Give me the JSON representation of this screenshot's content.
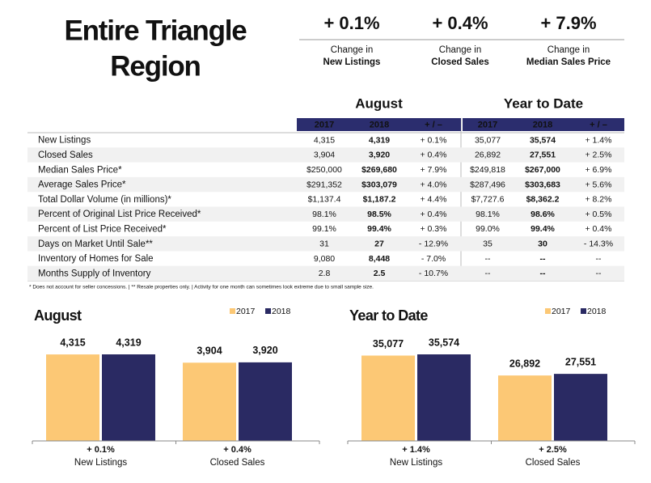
{
  "header": {
    "title_lines": [
      "Entire Triangle",
      "Region"
    ]
  },
  "highlights": [
    {
      "value": "+ 0.1%",
      "caption": [
        "Change in",
        "New Listings"
      ]
    },
    {
      "value": "+ 0.4%",
      "caption": [
        "Change in",
        "Closed Sales"
      ]
    },
    {
      "value": "+ 7.9%",
      "caption": [
        "Change in",
        "Median Sales Price"
      ]
    }
  ],
  "table": {
    "groups": [
      "August",
      "Year to Date"
    ],
    "columns": [
      "2017",
      "2018",
      "+ / –"
    ],
    "rows": [
      [
        "New Listings",
        "4,315",
        "4,319",
        "+ 0.1%",
        "35,077",
        "35,574",
        "+ 1.4%"
      ],
      [
        "Closed Sales",
        "3,904",
        "3,920",
        "+ 0.4%",
        "26,892",
        "27,551",
        "+ 2.5%"
      ],
      [
        "Median Sales Price*",
        "$250,000",
        "$269,680",
        "+ 7.9%",
        "$249,818",
        "$267,000",
        "+ 6.9%"
      ],
      [
        "Average Sales Price*",
        "$291,352",
        "$303,079",
        "+ 4.0%",
        "$287,496",
        "$303,683",
        "+ 5.6%"
      ],
      [
        "Total Dollar Volume (in millions)*",
        "$1,137.4",
        "$1,187.2",
        "+ 4.4%",
        "$7,727.6",
        "$8,362.2",
        "+ 8.2%"
      ],
      [
        "Percent of Original List Price Received*",
        "98.1%",
        "98.5%",
        "+ 0.4%",
        "98.1%",
        "98.6%",
        "+ 0.5%"
      ],
      [
        "Percent of List Price Received*",
        "99.1%",
        "99.4%",
        "+ 0.3%",
        "99.0%",
        "99.4%",
        "+ 0.4%"
      ],
      [
        "Days on Market Until Sale**",
        "31",
        "27",
        "- 12.9%",
        "35",
        "30",
        "- 14.3%"
      ],
      [
        "Inventory of Homes for Sale",
        "9,080",
        "8,448",
        "- 7.0%",
        "--",
        "--",
        "--"
      ],
      [
        "Months Supply of Inventory",
        "2.8",
        "2.5",
        "- 10.7%",
        "--",
        "--",
        "--"
      ]
    ]
  },
  "footnote": "* Does not account for seller concessions.  |  ** Resale properties only.  |  Activity for one month can sometimes look extreme due to small sample size.",
  "chart_data": [
    {
      "type": "bar",
      "title": "August",
      "categories": [
        "New Listings",
        "Closed Sales"
      ],
      "changes": [
        "+ 0.1%",
        "+ 0.4%"
      ],
      "series": [
        {
          "name": "2017",
          "color": "#fcc875",
          "values": [
            4315,
            3904
          ],
          "value_labels": [
            "4,315",
            "3,904"
          ]
        },
        {
          "name": "2018",
          "color": "#2a2a63",
          "values": [
            4319,
            3920
          ],
          "value_labels": [
            "4,319",
            "3,920"
          ]
        }
      ]
    },
    {
      "type": "bar",
      "title": "Year to Date",
      "categories": [
        "New Listings",
        "Closed Sales"
      ],
      "changes": [
        "+ 1.4%",
        "+ 2.5%"
      ],
      "series": [
        {
          "name": "2017",
          "color": "#fcc875",
          "values": [
            35077,
            26892
          ],
          "value_labels": [
            "35,077",
            "26,892"
          ]
        },
        {
          "name": "2018",
          "color": "#2a2a63",
          "values": [
            35574,
            27551
          ],
          "value_labels": [
            "35,574",
            "27,551"
          ]
        }
      ]
    }
  ]
}
